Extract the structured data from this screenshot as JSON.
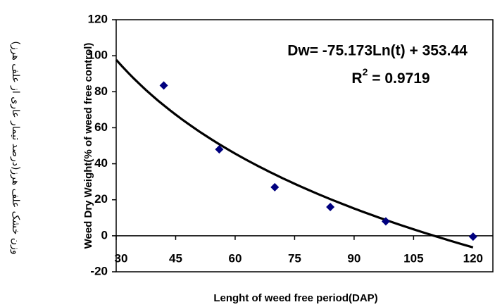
{
  "chart_data": {
    "type": "scatter",
    "x_label": "Lenght of weed free period(DAP)",
    "y_label": "Weed Dry Weight(% of weed free control)",
    "y_label_secondary": "وزن خشک علف هرز(درصد تیمار عاری از علف هرز)",
    "equation": "Dw= -75.173Ln(t) + 353.44",
    "r_squared": {
      "symbol": "R",
      "power": "2",
      "value": " = 0.9719"
    },
    "x": [
      42,
      56,
      70,
      84,
      98,
      120
    ],
    "series": [
      {
        "name": "Weed Dry Weight",
        "color": "#00007f",
        "values": [
          83.5,
          48,
          27,
          16,
          8,
          -0.5
        ]
      }
    ],
    "trendline": {
      "kind": "log",
      "slope": -75.173,
      "intercept": 353.44,
      "range": [
        30,
        120
      ],
      "color": "#000000"
    },
    "xlim": [
      30,
      125
    ],
    "xticks": [
      30,
      45,
      60,
      75,
      90,
      105,
      120
    ],
    "ylim": [
      -20,
      120
    ],
    "yticks": [
      -20,
      0,
      20,
      40,
      60,
      80,
      100,
      120
    ],
    "grid": false
  }
}
